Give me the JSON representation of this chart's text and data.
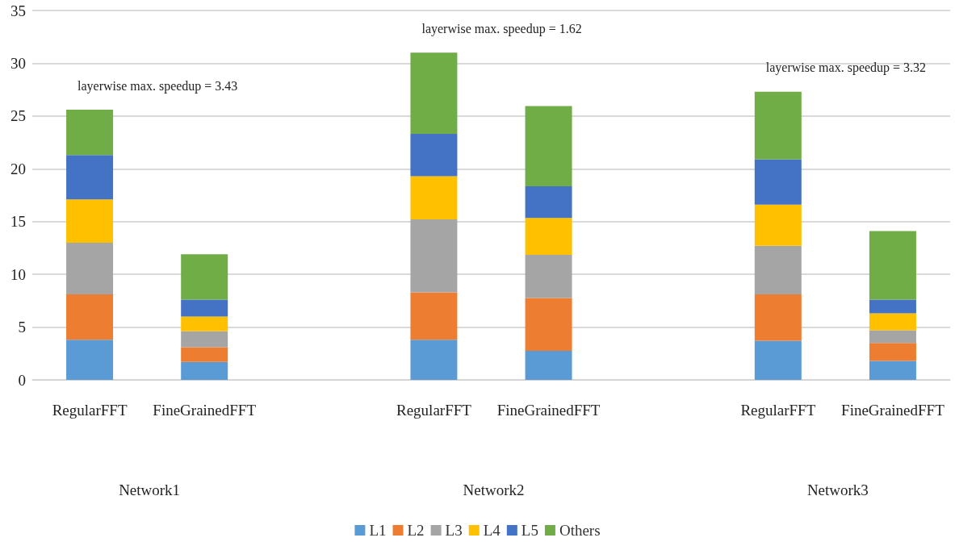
{
  "chart_data": {
    "type": "bar",
    "stacked": true,
    "categories": [
      "RegularFFT",
      "FineGrainedFFT",
      null,
      "RegularFFT",
      "FineGrainedFFT",
      null,
      "RegularFFT",
      "FineGrainedFFT"
    ],
    "series": [
      {
        "name": "L1",
        "color": "#5b9bd5",
        "values": [
          3.8,
          1.7,
          null,
          3.8,
          2.75,
          null,
          3.7,
          1.8
        ]
      },
      {
        "name": "L2",
        "color": "#ed7d31",
        "values": [
          4.3,
          1.4,
          null,
          4.5,
          5.0,
          null,
          4.4,
          1.7
        ]
      },
      {
        "name": "L3",
        "color": "#a5a5a5",
        "values": [
          4.9,
          1.5,
          null,
          6.9,
          4.1,
          null,
          4.6,
          1.2
        ]
      },
      {
        "name": "L4",
        "color": "#ffc000",
        "values": [
          4.1,
          1.4,
          null,
          4.1,
          3.5,
          null,
          3.9,
          1.6
        ]
      },
      {
        "name": "L5",
        "color": "#4472c4",
        "values": [
          4.2,
          1.6,
          null,
          4.0,
          3.0,
          null,
          4.3,
          1.3
        ]
      },
      {
        "name": "Others",
        "color": "#70ad47",
        "values": [
          4.3,
          4.3,
          null,
          7.7,
          7.6,
          null,
          6.4,
          6.5
        ]
      }
    ],
    "ylim": [
      0,
      35
    ],
    "yticks": [
      0,
      5,
      10,
      15,
      20,
      25,
      30,
      35
    ],
    "grid": "y",
    "legend": "bottom",
    "annotations": [
      "layerwise max. speedup = 3.43",
      "layerwise max. speedup = 1.62",
      "layerwise max. speedup = 3.32",
      "Network1",
      "Network2",
      "Network3"
    ]
  }
}
